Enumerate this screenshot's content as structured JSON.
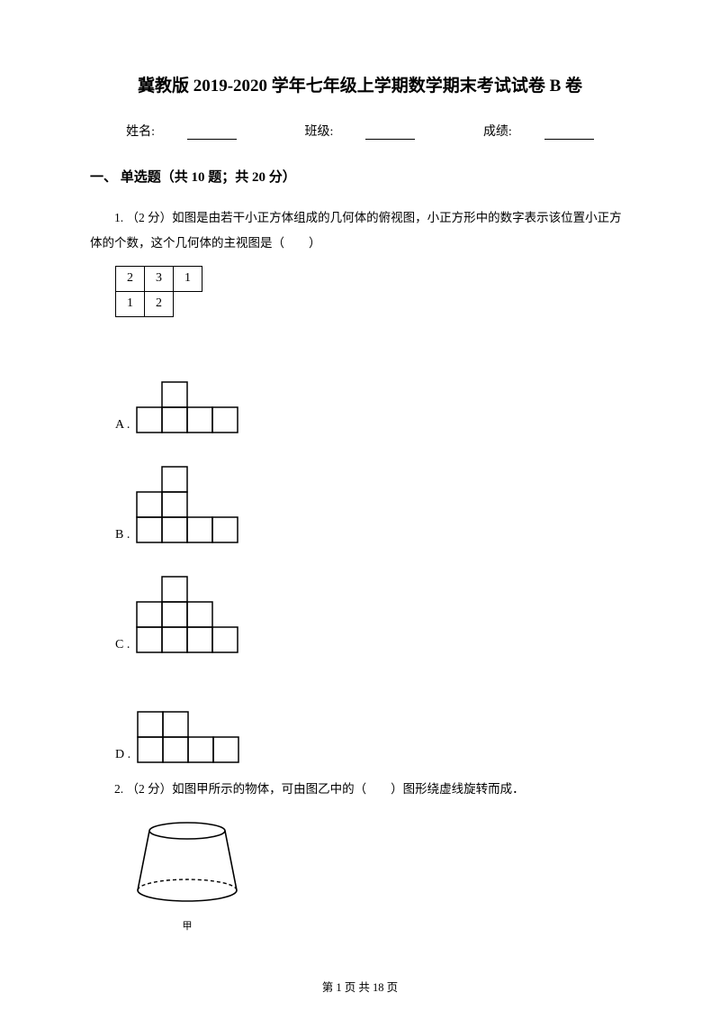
{
  "title": "冀教版 2019-2020 学年七年级上学期数学期末考试试卷 B 卷",
  "info": {
    "name_label": "姓名:",
    "class_label": "班级:",
    "score_label": "成绩:"
  },
  "section1": "一、 单选题（共 10 题；共 20 分）",
  "q1": {
    "text": "1.  （2 分）如图是由若干小正方体组成的几何体的俯视图，小正方形中的数字表示该位置小正方体的个数，这个几何体的主视图是（　　）",
    "grid": {
      "rows": [
        [
          "2",
          "3",
          "1"
        ],
        [
          "1",
          "2",
          ""
        ]
      ],
      "cell_size": 32,
      "border_color": "#000000"
    },
    "choices": {
      "A": {
        "columns": [
          [
            0,
            0,
            0,
            1
          ],
          [
            0,
            0,
            1,
            1
          ],
          [
            0,
            0,
            0,
            1
          ],
          [
            0,
            0,
            0,
            1
          ]
        ],
        "cell": 28
      },
      "B": {
        "columns": [
          [
            0,
            0,
            1,
            1
          ],
          [
            0,
            1,
            1,
            1
          ],
          [
            0,
            0,
            0,
            1
          ],
          [
            0,
            0,
            0,
            1
          ]
        ],
        "cell": 28
      },
      "C": {
        "columns": [
          [
            0,
            0,
            1,
            1
          ],
          [
            0,
            1,
            1,
            1
          ],
          [
            0,
            0,
            1,
            1
          ],
          [
            0,
            0,
            0,
            1
          ]
        ],
        "cell": 28
      },
      "D": {
        "columns": [
          [
            0,
            0,
            1,
            1
          ],
          [
            0,
            0,
            1,
            1
          ],
          [
            0,
            0,
            0,
            1
          ],
          [
            0,
            0,
            0,
            1
          ]
        ],
        "cell": 28
      }
    }
  },
  "q2": {
    "text": "2.  （2 分）如图甲所示的物体，可由图乙中的（　　）图形绕虚线旋转而成．",
    "cup_caption": "甲"
  },
  "footer": "第 1 页 共 18 页",
  "colors": {
    "text": "#000000",
    "bg": "#ffffff"
  }
}
